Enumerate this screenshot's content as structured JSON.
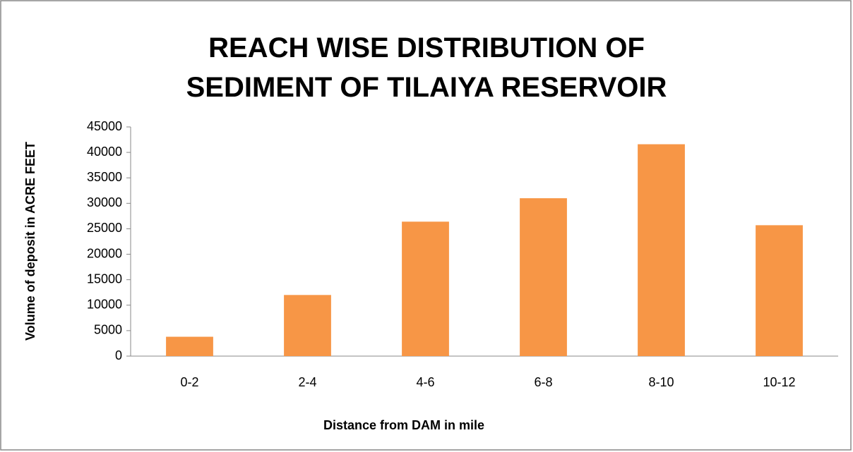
{
  "chart_data": {
    "type": "bar",
    "title": "REACH WISE DISTRIBUTION OF SEDIMENT OF TILAIYA RESERVOIR",
    "x_label": "Distance from DAM in mile",
    "y_label": "Volume of deposit in ACRE FEET",
    "categories": [
      "0-2",
      "2-4",
      "4-6",
      "6-8",
      "8-10",
      "10-12"
    ],
    "values": [
      3800,
      12000,
      26400,
      31000,
      41600,
      25700
    ],
    "color": "#f79646",
    "ylim": [
      0,
      45000
    ],
    "yticks": [
      0,
      5000,
      10000,
      15000,
      20000,
      25000,
      30000,
      35000,
      40000,
      45000
    ],
    "grid": false
  }
}
